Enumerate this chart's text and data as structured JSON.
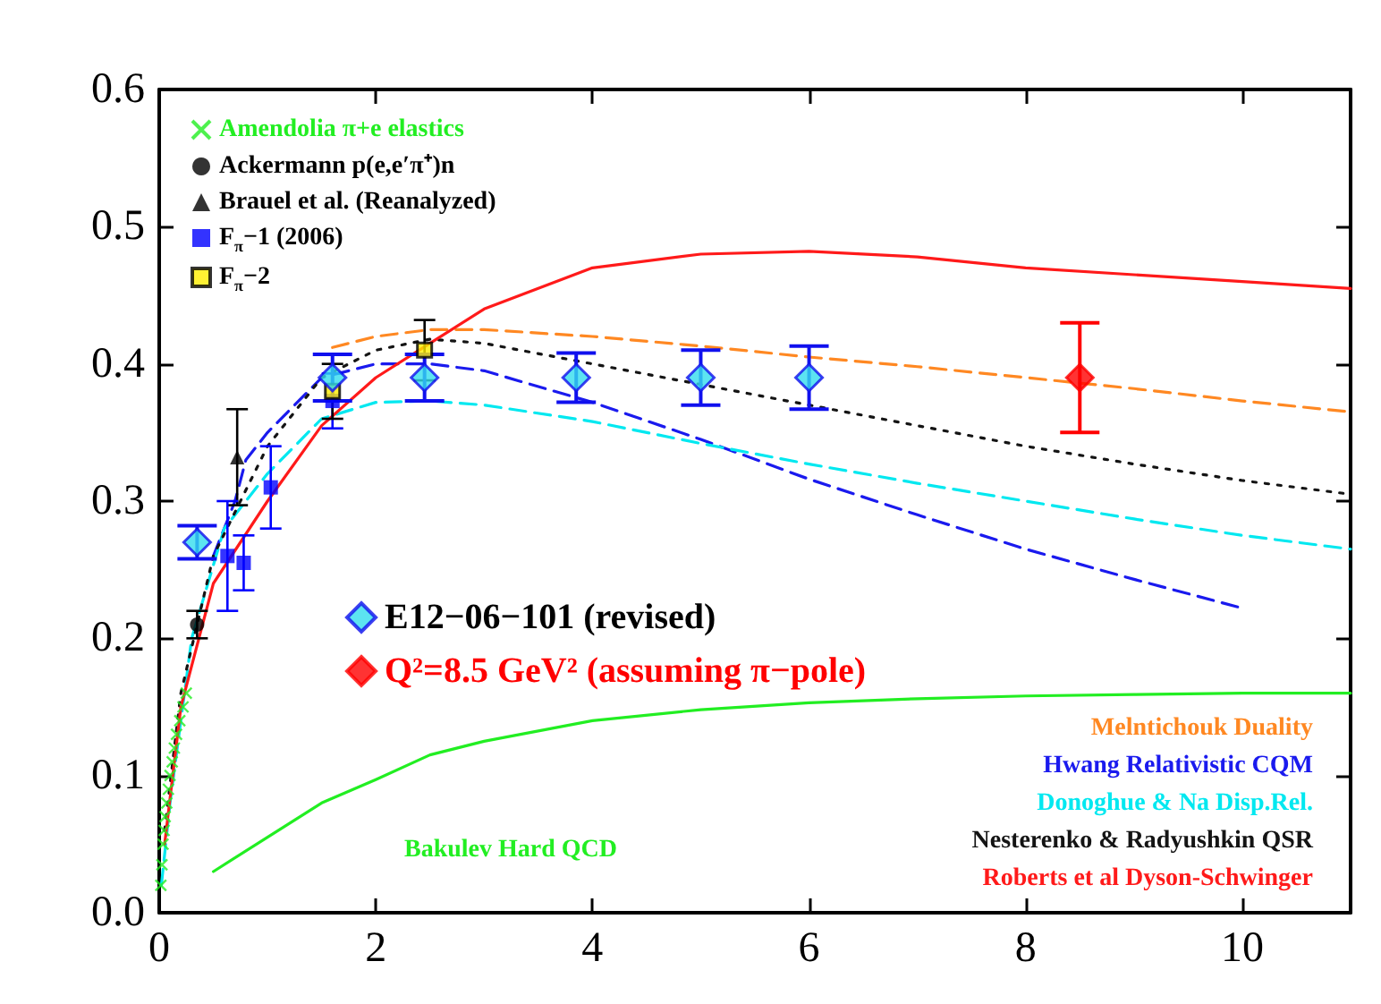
{
  "chart_data": {
    "type": "scatter",
    "xlim": [
      0,
      11
    ],
    "ylim": [
      0,
      0.6
    ],
    "xticks": [
      0,
      2,
      4,
      6,
      8,
      10
    ],
    "yticks": [
      {
        "value": 0,
        "label": "0.0"
      },
      0.1,
      0.2,
      0.3,
      0.4,
      0.5,
      0.6
    ],
    "grid": false,
    "legend": "top left",
    "series": [
      {
        "name": "Bakulev Hard QCD",
        "type": "line",
        "color": "#22ee22",
        "line_style": "solid",
        "x": [
          0.5,
          1,
          1.5,
          2,
          2.5,
          3,
          4,
          5,
          6,
          7,
          8,
          9,
          10,
          11
        ],
        "values": [
          0.03,
          0.055,
          0.08,
          0.097,
          0.115,
          0.125,
          0.14,
          0.148,
          0.153,
          0.156,
          0.158,
          0.159,
          0.16,
          0.16
        ]
      },
      {
        "name": "Melntichouk Duality",
        "type": "line",
        "color": "#ff8822",
        "line_style": "dashed",
        "x": [
          1.6,
          2,
          2.5,
          3,
          4,
          5,
          6,
          7,
          8,
          9,
          10,
          11
        ],
        "values": [
          0.412,
          0.42,
          0.425,
          0.425,
          0.42,
          0.413,
          0.405,
          0.398,
          0.39,
          0.382,
          0.373,
          0.365
        ]
      },
      {
        "name": "Hwang Relativistic CQM",
        "type": "line",
        "color": "#1a1aee",
        "line_style": "dashed",
        "x": [
          0.5,
          0.7,
          0.8,
          1,
          1.5,
          2,
          2.5,
          3,
          4,
          5,
          6,
          7,
          8,
          9,
          10
        ],
        "values": [
          0.26,
          0.3,
          0.33,
          0.35,
          0.39,
          0.4,
          0.4,
          0.395,
          0.372,
          0.345,
          0.316,
          0.29,
          0.265,
          0.243,
          0.222
        ]
      },
      {
        "name": "Donoghue & Na Disp.Rel.",
        "type": "line",
        "color": "#00e8f0",
        "line_style": "dashed",
        "x": [
          0.02,
          0.1,
          0.3,
          0.6,
          1,
          1.5,
          2,
          2.5,
          3,
          4,
          5,
          6,
          7,
          8,
          9,
          10,
          11
        ],
        "values": [
          0.02,
          0.08,
          0.2,
          0.28,
          0.32,
          0.36,
          0.372,
          0.373,
          0.37,
          0.358,
          0.342,
          0.327,
          0.313,
          0.3,
          0.287,
          0.275,
          0.265
        ]
      },
      {
        "name": "Nesterenko & Radyushkin QSR",
        "type": "line",
        "color": "#141414",
        "line_style": "dotted",
        "x": [
          0.05,
          0.2,
          0.5,
          1,
          1.5,
          2,
          2.5,
          3,
          4,
          5,
          6,
          7,
          8,
          9,
          10,
          11
        ],
        "values": [
          0.06,
          0.16,
          0.26,
          0.34,
          0.39,
          0.41,
          0.418,
          0.415,
          0.4,
          0.385,
          0.37,
          0.355,
          0.34,
          0.327,
          0.315,
          0.305
        ]
      },
      {
        "name": "Roberts et al Dyson-Schwinger",
        "type": "line",
        "color": "#ff1a1a",
        "line_style": "solid",
        "x": [
          0.05,
          0.2,
          0.5,
          1,
          1.5,
          2,
          2.5,
          3,
          4,
          5,
          6,
          7,
          8,
          9,
          10,
          11
        ],
        "values": [
          0.05,
          0.15,
          0.24,
          0.3,
          0.355,
          0.39,
          0.415,
          0.44,
          0.47,
          0.48,
          0.482,
          0.478,
          0.47,
          0.465,
          0.46,
          0.455
        ]
      },
      {
        "name": "Amendolia π+e elastics",
        "color": "#22ee22",
        "marker": "cross",
        "x": [
          0.015,
          0.025,
          0.035,
          0.045,
          0.055,
          0.07,
          0.085,
          0.1,
          0.12,
          0.14,
          0.16,
          0.19,
          0.22,
          0.25
        ],
        "values": [
          0.02,
          0.035,
          0.05,
          0.06,
          0.07,
          0.08,
          0.09,
          0.1,
          0.11,
          0.12,
          0.13,
          0.14,
          0.15,
          0.16
        ]
      },
      {
        "name": "Ackermann p(e,e′π⁺)n",
        "color": "#000000",
        "marker": "circle",
        "x": [
          0.35
        ],
        "values": [
          0.21
        ],
        "errors": [
          0.01
        ]
      },
      {
        "name": "Brauel et al. (Reanalyzed)",
        "color": "#000000",
        "marker": "triangle",
        "x": [
          0.72
        ],
        "values": [
          0.332
        ],
        "errors": [
          0.035
        ]
      },
      {
        "name": "F$_{π}$−1 (2006)",
        "color": "#0000ff",
        "marker": "square",
        "x": [
          0.63,
          0.78,
          1.03,
          1.6
        ],
        "values": [
          0.26,
          0.255,
          0.31,
          0.373
        ],
        "errors": [
          0.04,
          0.02,
          0.03,
          0.02
        ]
      },
      {
        "name": "F$_{π}$−2",
        "color": "#ffee00",
        "marker": "square",
        "x": [
          1.6,
          2.45
        ],
        "values": [
          0.38,
          0.41
        ],
        "errors": [
          0.02,
          0.022
        ]
      },
      {
        "name": "E12−06−101 (revised)",
        "color": "#33ddee",
        "marker": "diamond",
        "x": [
          0.35,
          1.6,
          2.45,
          3.85,
          5.0,
          6.0
        ],
        "values": [
          0.27,
          0.39,
          0.39,
          0.39,
          0.39,
          0.39
        ],
        "errors": [
          0.012,
          0.017,
          0.017,
          0.018,
          0.02,
          0.023
        ]
      },
      {
        "name": "Q²=8.5 GeV² (assuming π−pole)",
        "color": "#ff0000",
        "marker": "diamond",
        "x": [
          8.5
        ],
        "values": [
          0.39
        ],
        "errors": [
          0.04
        ]
      }
    ]
  }
}
